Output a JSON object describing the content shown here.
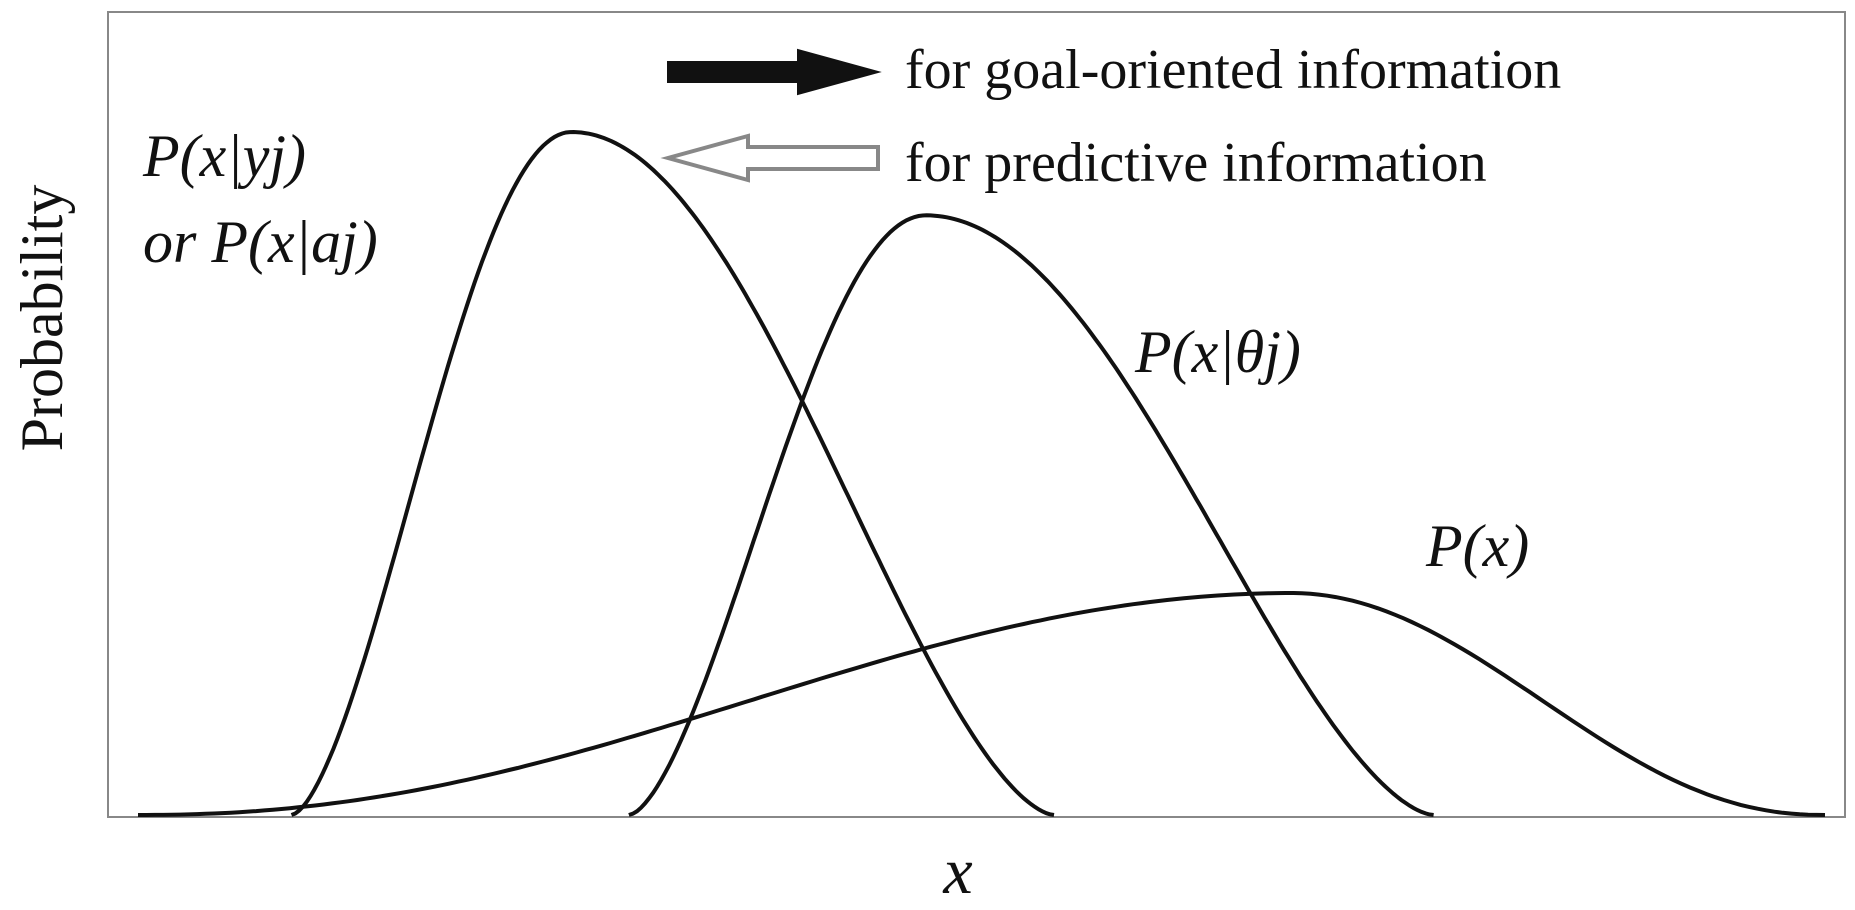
{
  "chart_data": {
    "type": "line",
    "xlabel": "x",
    "ylabel": "Probability",
    "grid": false,
    "legend": {
      "position": "top-right",
      "entries": [
        {
          "label": "for goal-oriented information",
          "arrow": "right",
          "style": "filled",
          "color": "#111111"
        },
        {
          "label": "for predictive information",
          "arrow": "left",
          "style": "hollow",
          "color": "#888888"
        }
      ]
    },
    "series": [
      {
        "name": "P(x|yj) or P(x|aj)",
        "label_lines": [
          "P(x|yj)",
          "or P(x|aj)"
        ],
        "shape": "skewed-bell",
        "start": 0.091,
        "peak": 0.257,
        "end": 0.543,
        "height": 1.0
      },
      {
        "name": "P(x|θj)",
        "label_lines": [
          "P(x|θj)"
        ],
        "shape": "skewed-bell",
        "start": 0.291,
        "peak": 0.467,
        "end": 0.768,
        "height": 0.878
      },
      {
        "name": "P(x)",
        "label_lines": [
          "P(x)"
        ],
        "shape": "broad-bell",
        "start": 0.0,
        "peak": 0.684,
        "end": 1.0,
        "height": 0.325
      }
    ]
  },
  "labels": {
    "curve1_line1": "P(x|yj)",
    "curve1_line2": "or P(x|aj)",
    "curve2": "P(x|θj)",
    "curve3": "P(x)"
  }
}
